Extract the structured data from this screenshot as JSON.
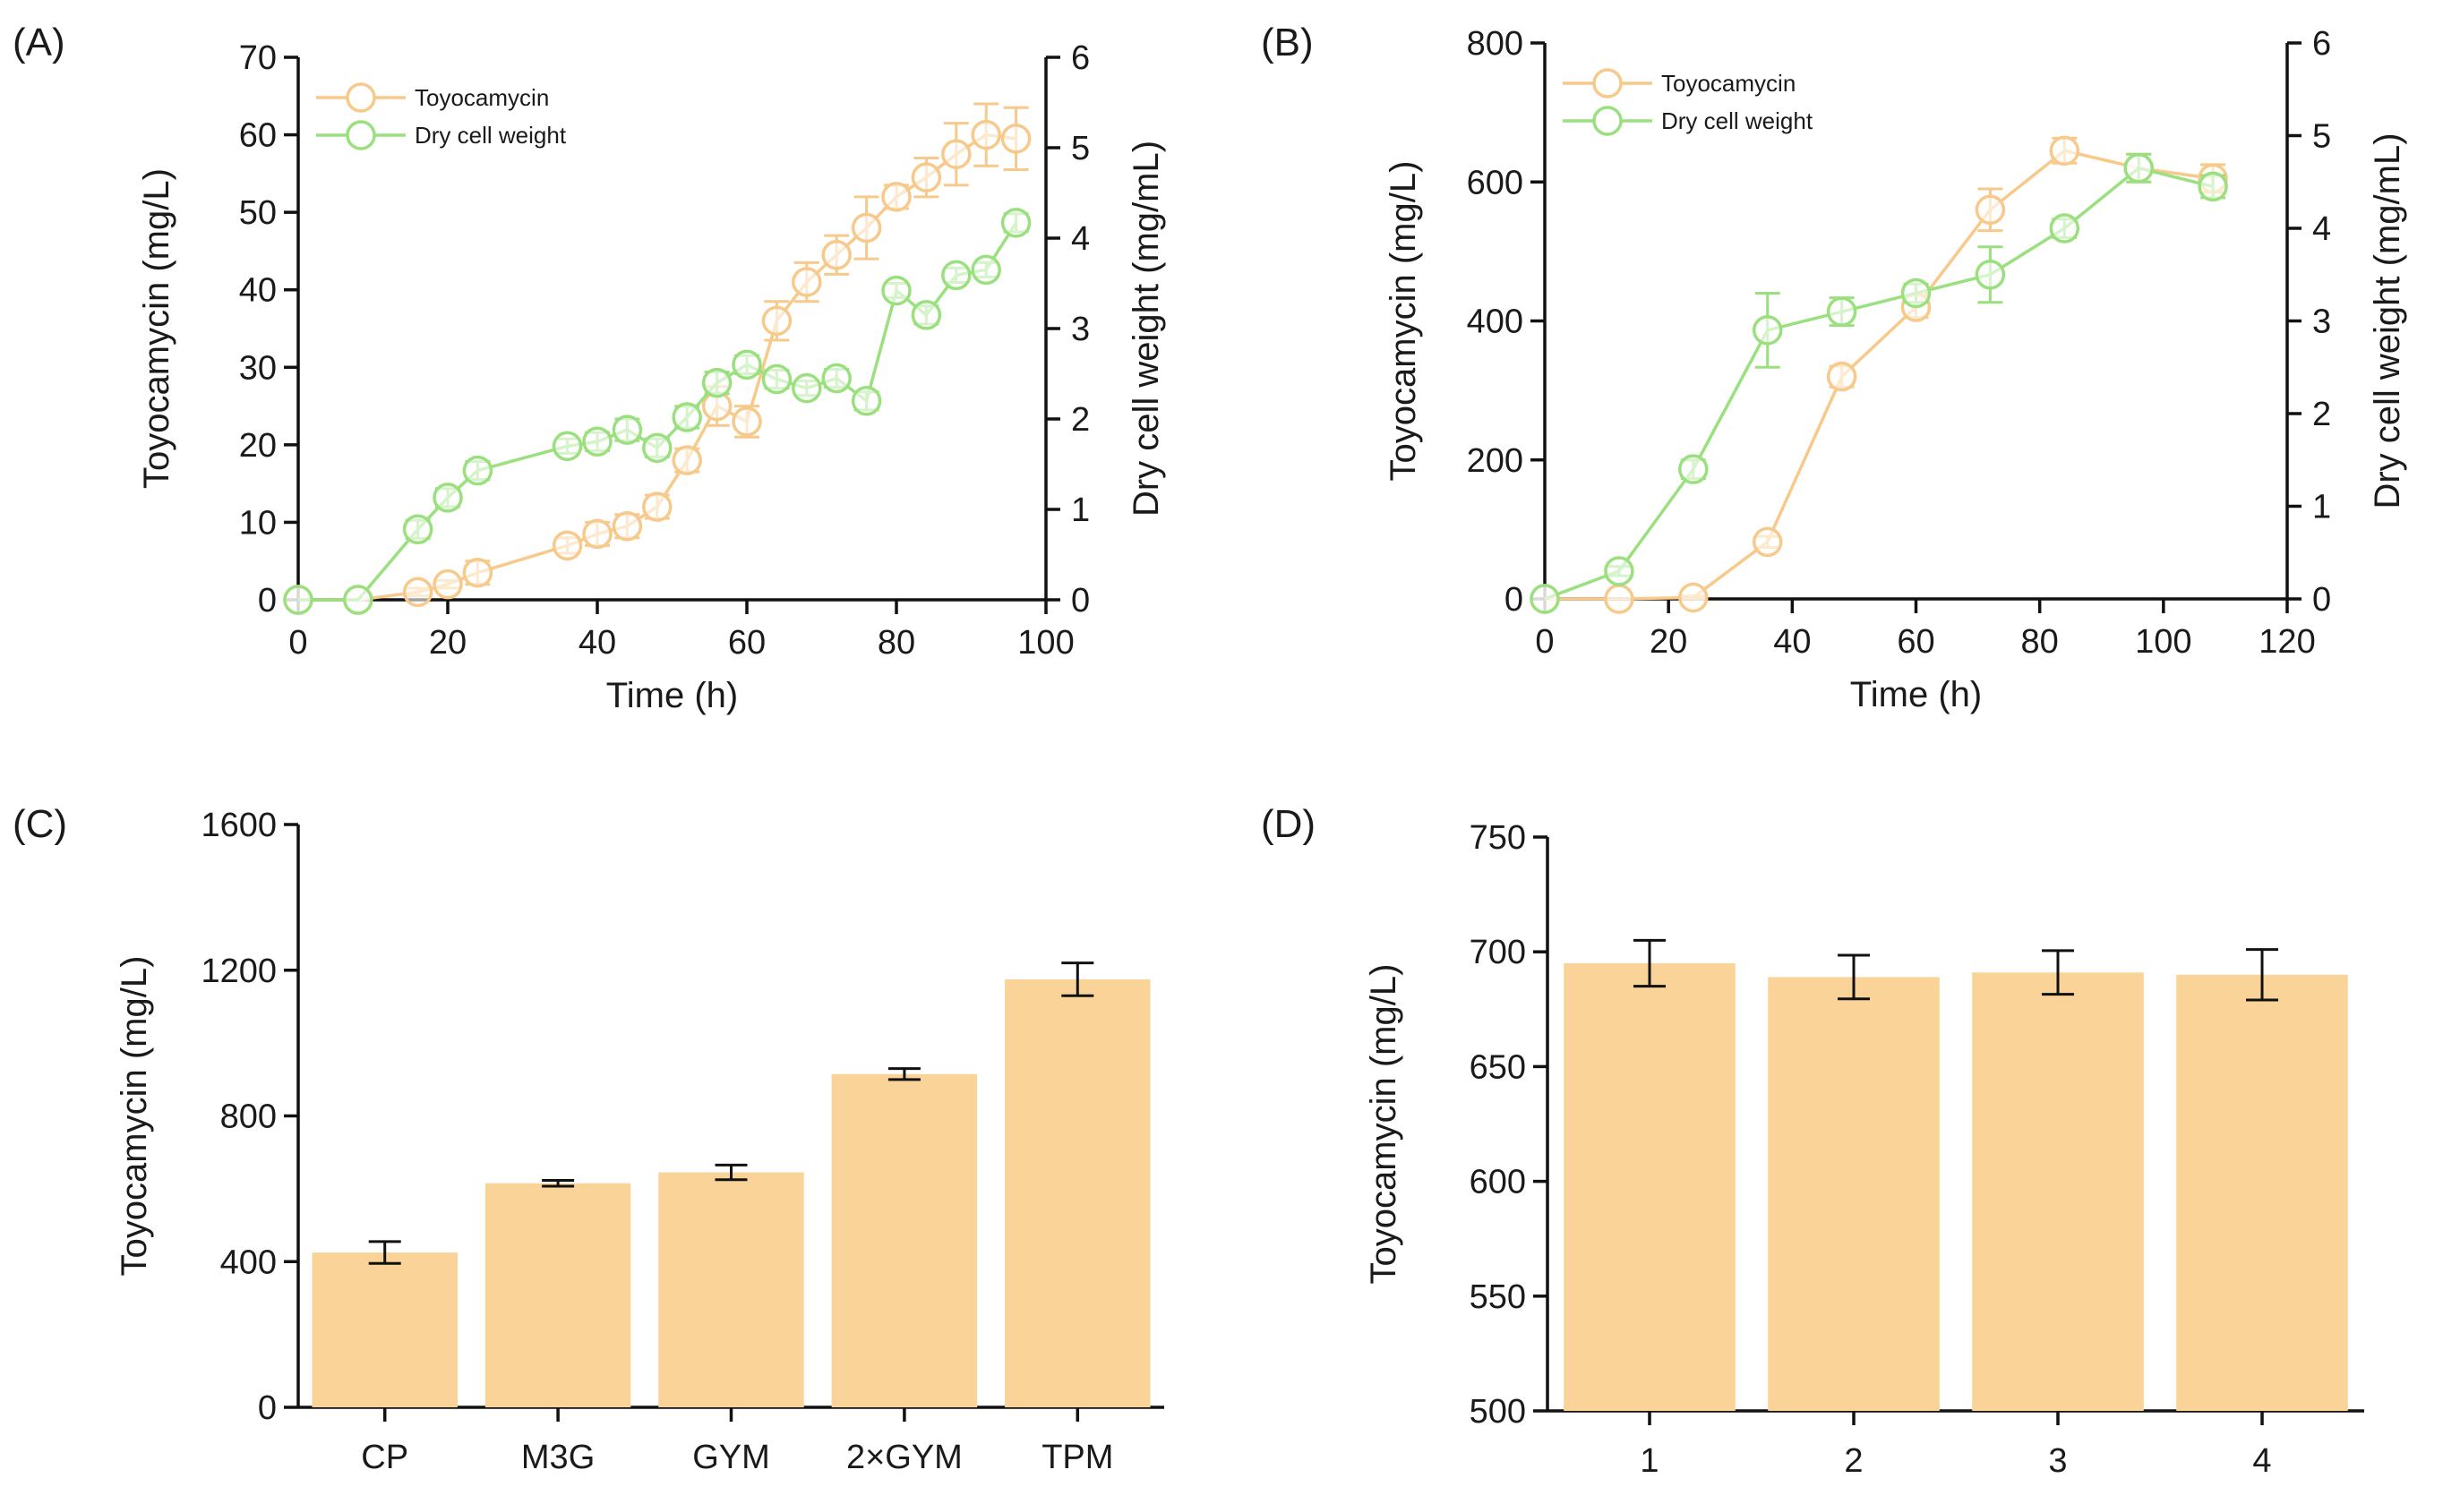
{
  "colors": {
    "toyocamycin": "#f7c98a",
    "dcw": "#9be07f",
    "bar": "#fad398",
    "axis": "#111111",
    "errorbar": "#111111"
  },
  "chart_data": [
    {
      "panel": "(A)",
      "type": "line",
      "xlabel": "Time (h)",
      "ylabel": "Toyocamycin (mg/L)",
      "y2label": "Dry cell weight (mg/mL)",
      "xlim": [
        0,
        100
      ],
      "xticks": [
        "0",
        "20",
        "40",
        "60",
        "80",
        "100"
      ],
      "ylim": [
        0,
        70
      ],
      "yticks": [
        "0",
        "10",
        "20",
        "30",
        "40",
        "50",
        "60",
        "70"
      ],
      "y2lim": [
        0,
        6
      ],
      "y2ticks": [
        "0",
        "1",
        "2",
        "3",
        "4",
        "5",
        "6"
      ],
      "legend": {
        "position": "top-left"
      },
      "series": [
        {
          "name": "Toyocamycin",
          "axis": "left",
          "color": "#f7c98a",
          "x": [
            0,
            8,
            16,
            20,
            24,
            36,
            40,
            44,
            48,
            52,
            56,
            60,
            64,
            68,
            72,
            76,
            80,
            84,
            88,
            92,
            96
          ],
          "y": [
            0,
            0,
            1,
            2,
            3.5,
            7,
            8.5,
            9.5,
            12,
            18,
            25,
            23,
            36,
            41,
            44.5,
            48,
            52,
            54.5,
            57.5,
            60,
            59.5
          ],
          "err": [
            0,
            0,
            0.5,
            0.5,
            1.5,
            1,
            1.5,
            1.5,
            1.5,
            1.5,
            2.5,
            2,
            2.5,
            2.5,
            2.5,
            4,
            1.5,
            2.5,
            4,
            4,
            4
          ]
        },
        {
          "name": "Dry cell weight",
          "axis": "right",
          "color": "#9be07f",
          "x": [
            0,
            8,
            16,
            20,
            24,
            36,
            40,
            44,
            48,
            52,
            56,
            60,
            64,
            68,
            72,
            76,
            80,
            84,
            88,
            92,
            96
          ],
          "y": [
            0,
            0,
            0.78,
            1.13,
            1.43,
            1.7,
            1.75,
            1.88,
            1.68,
            2.02,
            2.4,
            2.6,
            2.44,
            2.34,
            2.45,
            2.2,
            3.42,
            3.15,
            3.59,
            3.65,
            4.17
          ],
          "err": [
            0,
            0,
            0.1,
            0.1,
            0.1,
            0.08,
            0.1,
            0.12,
            0.1,
            0.12,
            0.12,
            0.1,
            0.1,
            0.08,
            0.1,
            0.1,
            0.08,
            0.1,
            0.08,
            0.08,
            0.1
          ]
        }
      ]
    },
    {
      "panel": "(B)",
      "type": "line",
      "xlabel": "Time (h)",
      "ylabel": "Toyocamycin (mg/L)",
      "y2label": "Dry cell weight (mg/mL)",
      "xlim": [
        0,
        120
      ],
      "xticks": [
        "0",
        "20",
        "40",
        "60",
        "80",
        "100",
        "120"
      ],
      "ylim": [
        0,
        800
      ],
      "yticks": [
        "0",
        "200",
        "400",
        "600",
        "800"
      ],
      "y2lim": [
        0,
        6
      ],
      "y2ticks": [
        "0",
        "1",
        "2",
        "3",
        "4",
        "5",
        "6"
      ],
      "legend": {
        "position": "top-left"
      },
      "series": [
        {
          "name": "Toyocamycin",
          "axis": "left",
          "color": "#f7c98a",
          "x": [
            0,
            12,
            24,
            36,
            48,
            60,
            72,
            84,
            96,
            108
          ],
          "y": [
            0,
            0,
            2,
            82,
            320,
            420,
            560,
            645,
            620,
            605
          ],
          "err": [
            0,
            0,
            2,
            8,
            15,
            15,
            30,
            18,
            20,
            20
          ]
        },
        {
          "name": "Dry cell weight",
          "axis": "right",
          "color": "#9be07f",
          "x": [
            0,
            12,
            24,
            36,
            48,
            60,
            72,
            84,
            96,
            108
          ],
          "y": [
            0,
            0.3,
            1.4,
            2.9,
            3.1,
            3.3,
            3.5,
            4.0,
            4.65,
            4.45
          ],
          "err": [
            0,
            0.05,
            0.1,
            0.4,
            0.15,
            0.1,
            0.3,
            0.1,
            0.15,
            0.12
          ]
        }
      ]
    },
    {
      "panel": "(C)",
      "type": "bar",
      "ylabel": "Toyocamycin (mg/L)",
      "categories": [
        "CP",
        "M3G",
        "GYM",
        "2×GYM",
        "TPM"
      ],
      "values": [
        425,
        615,
        645,
        915,
        1175
      ],
      "err": [
        30,
        8,
        20,
        15,
        45
      ],
      "ylim": [
        0,
        1600
      ],
      "yticks": [
        "0",
        "400",
        "800",
        "1200",
        "1600"
      ]
    },
    {
      "panel": "(D)",
      "type": "bar",
      "ylabel": "Toyocamycin (mg/L)",
      "categories": [
        "1",
        "2",
        "3",
        "4"
      ],
      "values": [
        695,
        689,
        691,
        690
      ],
      "err": [
        10,
        9.5,
        9.5,
        11
      ],
      "ylim": [
        500,
        750
      ],
      "yticks": [
        "500",
        "550",
        "600",
        "650",
        "700",
        "750"
      ]
    }
  ]
}
